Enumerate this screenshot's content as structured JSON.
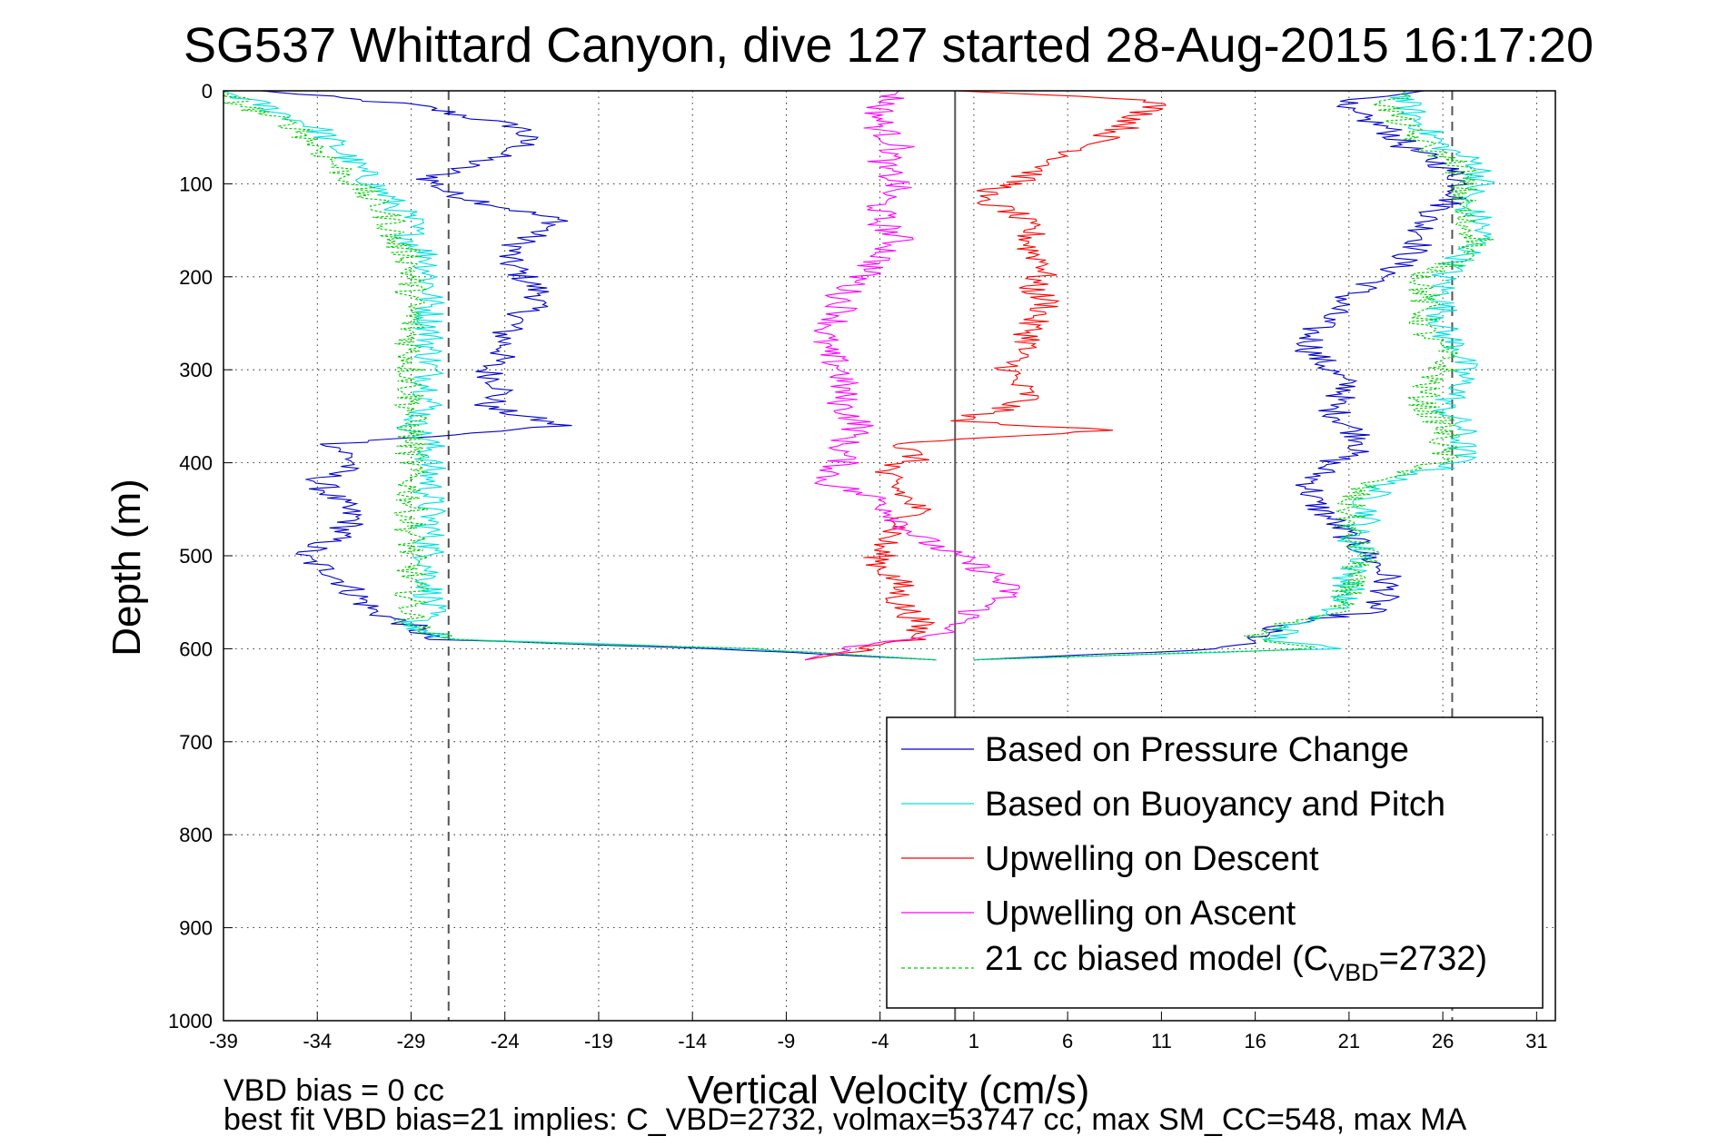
{
  "chart_data": {
    "type": "line",
    "title": "SG537 Whittard Canyon, dive 127 started 28-Aug-2015 16:17:20",
    "xlabel": "Vertical Velocity (cm/s)",
    "ylabel": "Depth (m)",
    "xlim": [
      -39,
      32
    ],
    "ylim": [
      0,
      1000
    ],
    "y_reversed": true,
    "grid": true,
    "x_ticks": [
      "-39",
      "-34",
      "-29",
      "-24",
      "-19",
      "-14",
      "-9",
      "-4",
      "1",
      "6",
      "11",
      "16",
      "21",
      "26",
      "31"
    ],
    "y_ticks": [
      "0",
      "100",
      "200",
      "300",
      "400",
      "500",
      "600",
      "700",
      "800",
      "900",
      "1000"
    ],
    "reference_lines": {
      "solid_x": 0,
      "dashed_x": [
        -27,
        26.5
      ]
    },
    "legend_position": "lower-right",
    "legend": {
      "entries": [
        "Based on Pressure Change",
        "Based on Buoyancy and Pitch",
        "Upwelling on Descent",
        "Upwelling on Ascent"
      ],
      "model_prefix": "21 cc biased model (C",
      "model_sub": "VBD",
      "model_suffix": "=2732)"
    },
    "footer": {
      "line1": "VBD bias = 0 cc",
      "line2": "best fit VBD bias=21 implies: C_VBD=2732, volmax=53747 cc, max SM_CC=548, max MA"
    },
    "series": [
      {
        "name": "Based on Pressure Change",
        "color": "#0000cc",
        "segments": [
          {
            "depths": [
              0,
              15,
              40,
              60,
              80,
              95,
              110,
              125,
              140,
              160,
              180,
              200,
              220,
              240,
              260,
              280,
              300,
              320,
              340,
              360,
              380,
              400,
              420,
              440,
              460,
              480,
              500,
              520,
              540,
              560,
              575,
              590,
              600,
              612
            ],
            "values": [
              -37,
              -29,
              -23,
              -23,
              -26,
              -28,
              -27,
              -24,
              -21,
              -23,
              -24,
              -23,
              -22,
              -23,
              -24,
              -24,
              -25,
              -24,
              -25,
              -21,
              -33,
              -32,
              -34,
              -33,
              -32,
              -33,
              -35,
              -33,
              -32,
              -31,
              -29,
              -28,
              -13,
              -1
            ]
          },
          {
            "depths": [
              0,
              15,
              40,
              60,
              80,
              95,
              110,
              125,
              140,
              160,
              180,
              200,
              220,
              240,
              260,
              280,
              300,
              320,
              340,
              360,
              380,
              400,
              420,
              440,
              460,
              480,
              500,
              520,
              540,
              560,
              575,
              590,
              600,
              612
            ],
            "values": [
              25,
              20,
              23,
              24,
              26,
              27,
              27,
              26,
              25,
              25,
              24,
              23,
              21,
              20,
              19,
              19,
              20,
              21,
              20,
              21,
              22,
              20,
              19,
              19,
              20,
              21,
              22,
              23,
              23,
              22,
              17,
              16,
              14,
              1
            ]
          }
        ]
      },
      {
        "name": "Based on Buoyancy and Pitch",
        "color": "#00e0e0",
        "segments": [
          {
            "depths": [
              0,
              15,
              40,
              60,
              80,
              100,
              120,
              140,
              160,
              180,
              200,
              220,
              240,
              260,
              280,
              300,
              320,
              340,
              360,
              380,
              400,
              420,
              440,
              460,
              480,
              500,
              520,
              540,
              560,
              575,
              590,
              600,
              612
            ],
            "values": [
              -39,
              -37,
              -34,
              -33,
              -32,
              -31,
              -30,
              -29,
              -29,
              -28,
              -28,
              -28,
              -28,
              -28,
              -28,
              -28,
              -28,
              -28,
              -29,
              -28,
              -28,
              -28,
              -28,
              -28,
              -28,
              -28,
              -28,
              -28,
              -28,
              -29,
              -27,
              -11,
              -1
            ]
          },
          {
            "depths": [
              0,
              15,
              40,
              60,
              80,
              100,
              120,
              140,
              160,
              180,
              200,
              220,
              240,
              260,
              280,
              300,
              320,
              340,
              360,
              380,
              400,
              420,
              440,
              460,
              480,
              500,
              520,
              540,
              560,
              575,
              590,
              600,
              612
            ],
            "values": [
              24,
              24,
              25,
              26,
              28,
              28,
              27,
              28,
              28,
              27,
              26,
              26,
              26,
              26,
              27,
              27,
              27,
              26,
              27,
              27,
              27,
              23,
              22,
              22,
              21,
              22,
              21,
              21,
              20,
              18,
              17,
              20,
              1
            ]
          }
        ]
      },
      {
        "name": "Upwelling on Descent",
        "color": "#ff0000",
        "segments": [
          {
            "depths": [
              0,
              10,
              25,
              40,
              60,
              80,
              100,
              115,
              130,
              150,
              170,
              190,
              210,
              230,
              250,
              270,
              290,
              310,
              330,
              345,
              355,
              365,
              380,
              395,
              410,
              430,
              450,
              470,
              490,
              510,
              530,
              550,
              570,
              590,
              605,
              612
            ],
            "values": [
              0,
              11,
              10,
              9,
              7,
              5,
              3,
              1,
              3,
              4,
              4,
              5,
              4,
              5,
              4,
              4,
              3,
              3,
              4,
              2,
              0,
              8,
              -3,
              -2,
              -4,
              -3,
              -2,
              -3,
              -4,
              -4,
              -3,
              -3,
              -2,
              -2,
              -6,
              -8
            ]
          }
        ]
      },
      {
        "name": "Upwelling on Ascent",
        "color": "#ff00ff",
        "segments": [
          {
            "depths": [
              0,
              20,
              40,
              60,
              80,
              100,
              120,
              140,
              160,
              180,
              200,
              220,
              240,
              260,
              280,
              300,
              320,
              340,
              360,
              380,
              400,
              420,
              440,
              460,
              480,
              500,
              520,
              540,
              560,
              580,
              600,
              612
            ],
            "values": [
              -3,
              -4,
              -4,
              -3,
              -4,
              -3,
              -4,
              -4,
              -3,
              -4,
              -5,
              -6,
              -6,
              -7,
              -7,
              -6,
              -6,
              -6,
              -5,
              -6,
              -6,
              -7,
              -4,
              -3,
              -2,
              0,
              2,
              3,
              1,
              0,
              -6,
              -8
            ]
          }
        ]
      },
      {
        "name": "21 cc biased model (CVBD=2732)",
        "color": "#00cc00",
        "dashed": true,
        "segments": [
          {
            "depths": [
              0,
              15,
              40,
              60,
              80,
              100,
              120,
              140,
              160,
              180,
              200,
              220,
              240,
              260,
              280,
              300,
              320,
              340,
              360,
              380,
              400,
              420,
              440,
              460,
              480,
              500,
              520,
              540,
              560,
              575,
              590,
              600,
              612
            ],
            "values": [
              -39,
              -38,
              -35,
              -34,
              -33,
              -32,
              -31,
              -30,
              -30,
              -29,
              -29,
              -29,
              -29,
              -29,
              -29,
              -29,
              -29,
              -29,
              -29,
              -29,
              -29,
              -29,
              -29,
              -29,
              -29,
              -29,
              -29,
              -29,
              -29,
              -29,
              -27,
              -11,
              -1
            ]
          },
          {
            "depths": [
              0,
              15,
              40,
              60,
              80,
              100,
              120,
              140,
              160,
              180,
              200,
              220,
              240,
              260,
              280,
              300,
              320,
              340,
              360,
              380,
              400,
              420,
              440,
              460,
              480,
              500,
              520,
              540,
              560,
              575,
              590,
              600,
              612
            ],
            "values": [
              24,
              23,
              24,
              25,
              27,
              27,
              27,
              27,
              28,
              27,
              25,
              25,
              25,
              25,
              26,
              26,
              25,
              25,
              26,
              26,
              26,
              22,
              21,
              21,
              21,
              22,
              21,
              21,
              20,
              17,
              16,
              19,
              1
            ]
          }
        ]
      }
    ]
  }
}
